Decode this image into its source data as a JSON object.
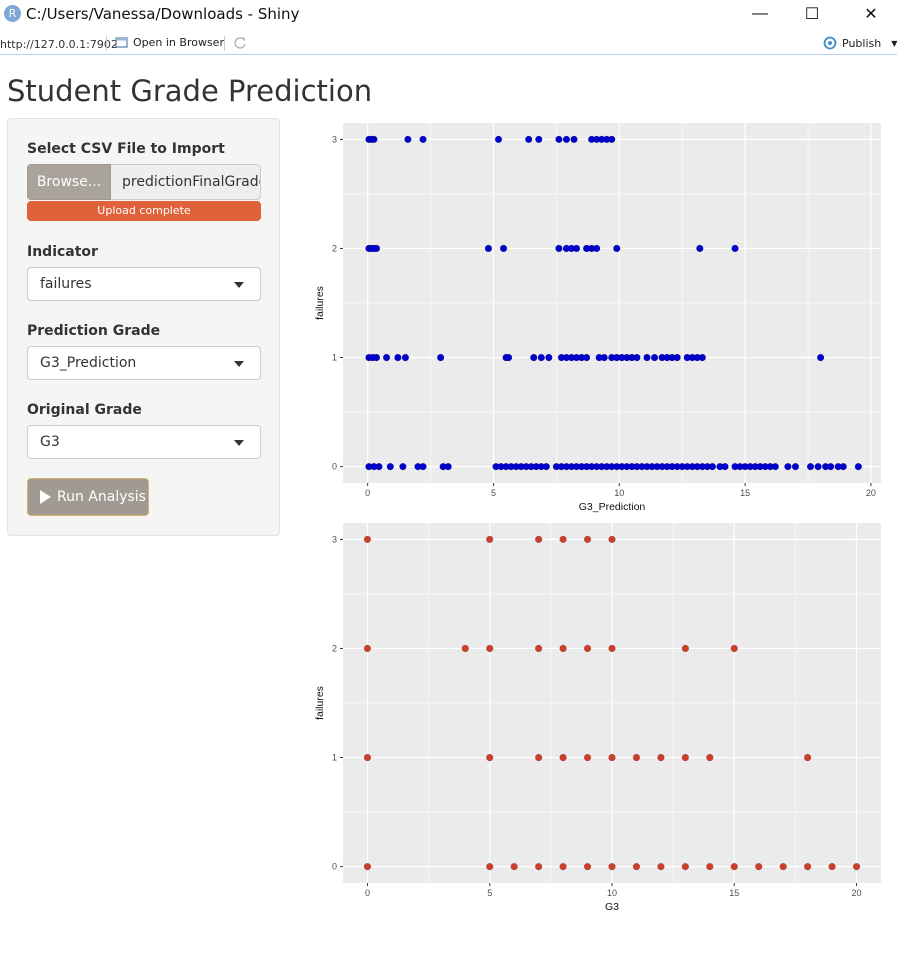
{
  "window": {
    "title": "C:/Users/Vanessa/Downloads - Shiny",
    "app_icon_letter": "R",
    "min_glyph": "—",
    "max_glyph": "☐",
    "close_glyph": "✕"
  },
  "toolbar": {
    "url": "http://127.0.0.1:7902",
    "open_in_browser": "Open in Browser",
    "publish": "Publish"
  },
  "page": {
    "title": "Student Grade Prediction"
  },
  "sidebar": {
    "file_label": "Select CSV File to Import",
    "browse_label": "Browse...",
    "file_name": "predictionFinalGrade.csv",
    "upload_status": "Upload complete",
    "upload_progress": 1.0,
    "indicator_label": "Indicator",
    "indicator_value": "failures",
    "prediction_label": "Prediction Grade",
    "prediction_value": "G3_Prediction",
    "original_label": "Original Grade",
    "original_value": "G3",
    "run_label": "Run Analysis"
  },
  "colors": {
    "accent": "#e0623a",
    "series_top": "#0000cd",
    "series_bottom": "#cd3f2a",
    "panel": "#ebebeb"
  },
  "chart_data": [
    {
      "type": "scatter",
      "xlabel": "G3_Prediction",
      "ylabel": "failures",
      "xlim": [
        -0.98,
        20.4
      ],
      "ylim": [
        -0.15,
        3.15
      ],
      "xticks": [
        0,
        5,
        10,
        15,
        20
      ],
      "yticks": [
        0,
        1,
        2,
        3
      ],
      "color": "#0000cd",
      "points": [
        [
          0.05,
          3
        ],
        [
          0.15,
          3
        ],
        [
          0.25,
          3
        ],
        [
          1.6,
          3
        ],
        [
          2.2,
          3
        ],
        [
          5.2,
          3
        ],
        [
          6.4,
          3
        ],
        [
          6.8,
          3
        ],
        [
          7.6,
          3
        ],
        [
          7.9,
          3
        ],
        [
          8.2,
          3
        ],
        [
          8.9,
          3
        ],
        [
          9.1,
          3
        ],
        [
          9.3,
          3
        ],
        [
          9.5,
          3
        ],
        [
          9.7,
          3
        ],
        [
          0.05,
          2
        ],
        [
          0.15,
          2
        ],
        [
          0.25,
          2
        ],
        [
          0.35,
          2
        ],
        [
          4.8,
          2
        ],
        [
          5.4,
          2
        ],
        [
          7.6,
          2
        ],
        [
          7.9,
          2
        ],
        [
          8.1,
          2
        ],
        [
          8.3,
          2
        ],
        [
          8.7,
          2
        ],
        [
          8.9,
          2
        ],
        [
          9.1,
          2
        ],
        [
          9.9,
          2
        ],
        [
          13.2,
          2
        ],
        [
          14.6,
          2
        ],
        [
          0.05,
          1
        ],
        [
          0.2,
          1
        ],
        [
          0.35,
          1
        ],
        [
          0.75,
          1
        ],
        [
          1.2,
          1
        ],
        [
          1.5,
          1
        ],
        [
          2.9,
          1
        ],
        [
          5.5,
          1
        ],
        [
          5.6,
          1
        ],
        [
          6.6,
          1
        ],
        [
          6.9,
          1
        ],
        [
          7.2,
          1
        ],
        [
          7.7,
          1
        ],
        [
          7.9,
          1
        ],
        [
          8.1,
          1
        ],
        [
          8.3,
          1
        ],
        [
          8.5,
          1
        ],
        [
          8.7,
          1
        ],
        [
          9.2,
          1
        ],
        [
          9.4,
          1
        ],
        [
          9.7,
          1
        ],
        [
          9.9,
          1
        ],
        [
          10.1,
          1
        ],
        [
          10.3,
          1
        ],
        [
          10.5,
          1
        ],
        [
          10.7,
          1
        ],
        [
          11.1,
          1
        ],
        [
          11.4,
          1
        ],
        [
          11.7,
          1
        ],
        [
          11.9,
          1
        ],
        [
          12.1,
          1
        ],
        [
          12.3,
          1
        ],
        [
          12.7,
          1
        ],
        [
          12.9,
          1
        ],
        [
          13.1,
          1
        ],
        [
          13.3,
          1
        ],
        [
          18.0,
          1
        ],
        [
          0.05,
          0
        ],
        [
          0.25,
          0
        ],
        [
          0.45,
          0
        ],
        [
          0.9,
          0
        ],
        [
          1.4,
          0
        ],
        [
          2.0,
          0
        ],
        [
          2.2,
          0
        ],
        [
          3.0,
          0
        ],
        [
          3.2,
          0
        ],
        [
          5.1,
          0
        ],
        [
          5.3,
          0
        ],
        [
          5.5,
          0
        ],
        [
          5.7,
          0
        ],
        [
          5.9,
          0
        ],
        [
          6.1,
          0
        ],
        [
          6.3,
          0
        ],
        [
          6.5,
          0
        ],
        [
          6.7,
          0
        ],
        [
          6.9,
          0
        ],
        [
          7.1,
          0
        ],
        [
          7.5,
          0
        ],
        [
          7.7,
          0
        ],
        [
          7.9,
          0
        ],
        [
          8.1,
          0
        ],
        [
          8.3,
          0
        ],
        [
          8.5,
          0
        ],
        [
          8.7,
          0
        ],
        [
          8.9,
          0
        ],
        [
          9.1,
          0
        ],
        [
          9.3,
          0
        ],
        [
          9.5,
          0
        ],
        [
          9.7,
          0
        ],
        [
          9.9,
          0
        ],
        [
          10.1,
          0
        ],
        [
          10.3,
          0
        ],
        [
          10.5,
          0
        ],
        [
          10.7,
          0
        ],
        [
          10.9,
          0
        ],
        [
          11.1,
          0
        ],
        [
          11.3,
          0
        ],
        [
          11.5,
          0
        ],
        [
          11.7,
          0
        ],
        [
          11.9,
          0
        ],
        [
          12.1,
          0
        ],
        [
          12.3,
          0
        ],
        [
          12.5,
          0
        ],
        [
          12.7,
          0
        ],
        [
          12.9,
          0
        ],
        [
          13.1,
          0
        ],
        [
          13.3,
          0
        ],
        [
          13.5,
          0
        ],
        [
          13.7,
          0
        ],
        [
          14.0,
          0
        ],
        [
          14.2,
          0
        ],
        [
          14.6,
          0
        ],
        [
          14.8,
          0
        ],
        [
          15.0,
          0
        ],
        [
          15.2,
          0
        ],
        [
          15.4,
          0
        ],
        [
          15.6,
          0
        ],
        [
          15.8,
          0
        ],
        [
          16.0,
          0
        ],
        [
          16.2,
          0
        ],
        [
          16.7,
          0
        ],
        [
          17.0,
          0
        ],
        [
          17.6,
          0
        ],
        [
          17.9,
          0
        ],
        [
          18.2,
          0
        ],
        [
          18.4,
          0
        ],
        [
          18.7,
          0
        ],
        [
          18.9,
          0
        ],
        [
          19.5,
          0
        ]
      ]
    },
    {
      "type": "scatter",
      "xlabel": "G3",
      "ylabel": "failures",
      "xlim": [
        -1.0,
        21.0
      ],
      "ylim": [
        -0.15,
        3.15
      ],
      "xticks": [
        0,
        5,
        10,
        15,
        20
      ],
      "yticks": [
        0,
        1,
        2,
        3
      ],
      "color": "#cd3f2a",
      "points": [
        [
          0,
          3
        ],
        [
          5,
          3
        ],
        [
          7,
          3
        ],
        [
          8,
          3
        ],
        [
          9,
          3
        ],
        [
          10,
          3
        ],
        [
          0,
          2
        ],
        [
          4,
          2
        ],
        [
          5,
          2
        ],
        [
          7,
          2
        ],
        [
          8,
          2
        ],
        [
          9,
          2
        ],
        [
          10,
          2
        ],
        [
          13,
          2
        ],
        [
          15,
          2
        ],
        [
          0,
          1
        ],
        [
          5,
          1
        ],
        [
          7,
          1
        ],
        [
          8,
          1
        ],
        [
          9,
          1
        ],
        [
          10,
          1
        ],
        [
          11,
          1
        ],
        [
          12,
          1
        ],
        [
          13,
          1
        ],
        [
          14,
          1
        ],
        [
          18,
          1
        ],
        [
          0,
          0
        ],
        [
          5,
          0
        ],
        [
          6,
          0
        ],
        [
          7,
          0
        ],
        [
          8,
          0
        ],
        [
          9,
          0
        ],
        [
          10,
          0
        ],
        [
          11,
          0
        ],
        [
          12,
          0
        ],
        [
          13,
          0
        ],
        [
          14,
          0
        ],
        [
          15,
          0
        ],
        [
          16,
          0
        ],
        [
          17,
          0
        ],
        [
          18,
          0
        ],
        [
          19,
          0
        ],
        [
          20,
          0
        ]
      ]
    }
  ]
}
